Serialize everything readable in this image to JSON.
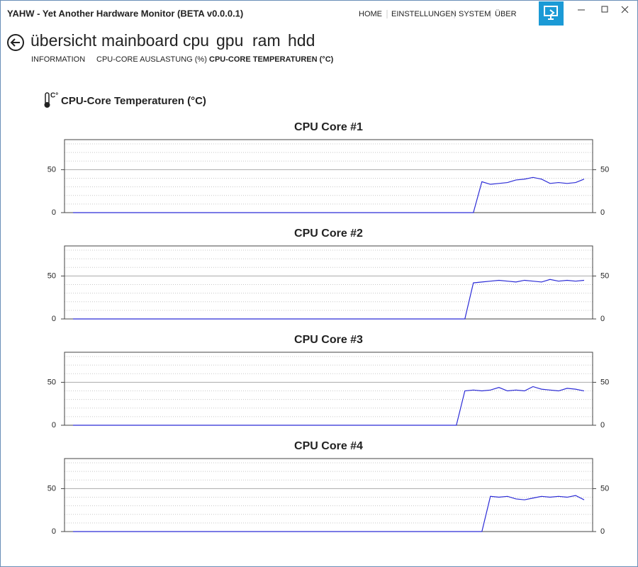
{
  "window": {
    "title": "YAHW - Yet Another Hardware Monitor (BETA v0.0.0.1)",
    "menu": [
      "HOME",
      "EINSTELLUNGEN",
      "SYSTEM",
      "ÜBER"
    ]
  },
  "tabs": [
    "übersicht",
    "mainboard",
    "cpu",
    "gpu",
    "ram",
    "hdd"
  ],
  "subtabs": [
    "INFORMATION",
    "CPU-CORE AUSLASTUNG (%)",
    "CPU-CORE TEMPERATUREN (°C)"
  ],
  "section_title": "CPU-Core Temperaturen (°C)",
  "chart_data": [
    {
      "type": "line",
      "title": "CPU Core #1",
      "color": "#2b2bd6",
      "grid": true,
      "right_axis": true,
      "x": [
        1,
        48,
        49,
        50,
        51,
        52,
        53,
        54,
        55,
        56,
        57,
        58,
        59,
        60,
        61
      ],
      "values": [
        0,
        0,
        36,
        33,
        34,
        35,
        38,
        39,
        41,
        39,
        34,
        35,
        34,
        35,
        39
      ],
      "xlim": [
        0,
        62
      ],
      "ylim": [
        0,
        85
      ],
      "yticks": [
        0,
        50
      ],
      "minor_yticks": [
        10,
        20,
        30,
        40,
        60,
        70,
        80
      ]
    },
    {
      "type": "line",
      "title": "CPU Core #2",
      "color": "#2b2bd6",
      "grid": true,
      "right_axis": true,
      "x": [
        1,
        47,
        48,
        49,
        50,
        51,
        52,
        53,
        54,
        55,
        56,
        57,
        58,
        59,
        60,
        61
      ],
      "values": [
        0,
        0,
        42,
        43,
        44,
        45,
        44,
        43,
        45,
        44,
        43,
        46,
        44,
        45,
        44,
        45
      ],
      "xlim": [
        0,
        62
      ],
      "ylim": [
        0,
        85
      ],
      "yticks": [
        0,
        50
      ],
      "minor_yticks": [
        10,
        20,
        30,
        40,
        60,
        70,
        80
      ]
    },
    {
      "type": "line",
      "title": "CPU Core #3",
      "color": "#2b2bd6",
      "grid": true,
      "right_axis": true,
      "x": [
        1,
        46,
        47,
        48,
        49,
        50,
        51,
        52,
        53,
        54,
        55,
        56,
        57,
        58,
        59,
        60,
        61
      ],
      "values": [
        0,
        0,
        40,
        41,
        40,
        41,
        44,
        40,
        41,
        40,
        45,
        42,
        41,
        40,
        43,
        42,
        40
      ],
      "xlim": [
        0,
        62
      ],
      "ylim": [
        0,
        85
      ],
      "yticks": [
        0,
        50
      ],
      "minor_yticks": [
        10,
        20,
        30,
        40,
        60,
        70,
        80
      ]
    },
    {
      "type": "line",
      "title": "CPU Core #4",
      "color": "#2b2bd6",
      "grid": true,
      "right_axis": true,
      "x": [
        1,
        49,
        50,
        51,
        52,
        53,
        54,
        55,
        56,
        57,
        58,
        59,
        60,
        61
      ],
      "values": [
        0,
        0,
        41,
        40,
        41,
        38,
        37,
        39,
        41,
        40,
        41,
        40,
        42,
        37
      ],
      "xlim": [
        0,
        62
      ],
      "ylim": [
        0,
        85
      ],
      "yticks": [
        0,
        50
      ],
      "minor_yticks": [
        10,
        20,
        30,
        40,
        60,
        70,
        80
      ]
    }
  ]
}
